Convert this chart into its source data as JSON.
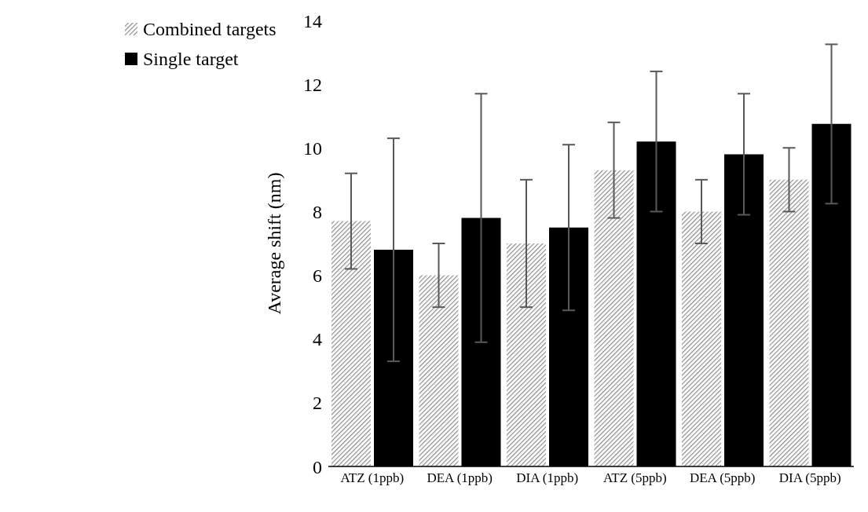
{
  "chart_data": {
    "type": "bar",
    "ylabel": "Average  shift (nm)",
    "categories": [
      "ATZ (1ppb)",
      "DEA (1ppb)",
      "DIA (1ppb)",
      "ATZ (5ppb)",
      "DEA (5ppb)",
      "DIA (5ppb)"
    ],
    "series": [
      {
        "name": "Combined targets",
        "color": "#8c8c8c",
        "values": [
          7.7,
          6.0,
          7.0,
          9.3,
          8.0,
          9.0
        ],
        "errors": [
          1.5,
          1.0,
          2.0,
          1.5,
          1.0,
          1.0
        ]
      },
      {
        "name": "Single target",
        "color": "#000000",
        "values": [
          6.8,
          7.8,
          7.5,
          10.2,
          9.8,
          10.75
        ],
        "errors": [
          3.5,
          3.9,
          2.6,
          2.2,
          1.9,
          2.5
        ]
      }
    ],
    "ylim": [
      0,
      14
    ],
    "yticks": [
      0,
      2,
      4,
      6,
      8,
      10,
      12,
      14
    ],
    "grid": false,
    "legend": "top left"
  }
}
